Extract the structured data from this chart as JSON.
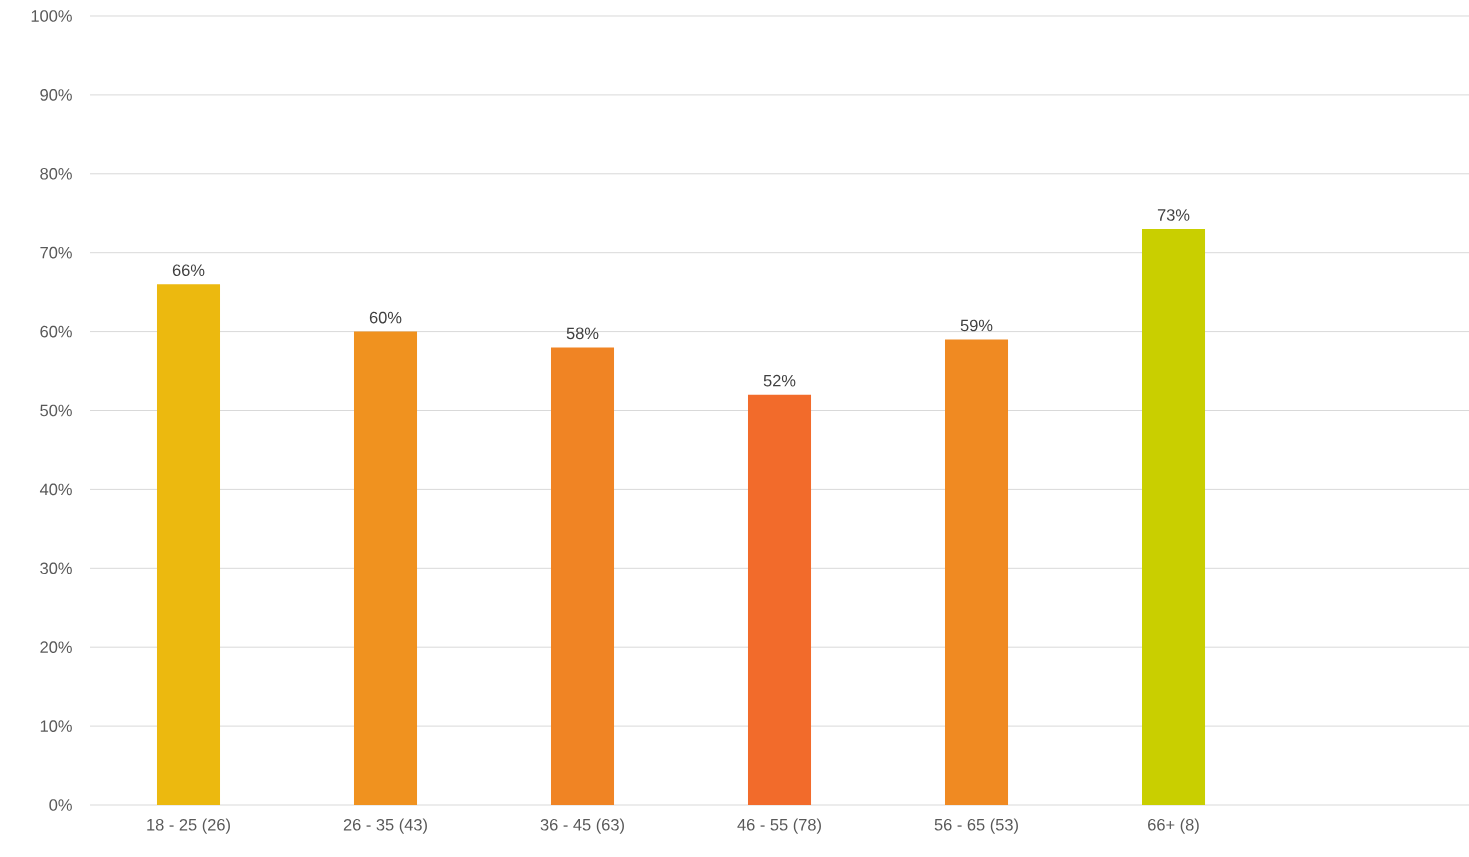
{
  "chart_data": {
    "type": "bar",
    "categories": [
      "18 - 25 (26)",
      "26 - 35 (43)",
      "36 - 45 (63)",
      "46 - 55 (78)",
      "56 - 65 (53)",
      "66+ (8)",
      null
    ],
    "values": [
      66,
      60,
      58,
      52,
      59,
      73,
      null
    ],
    "colors": [
      "#ecb90f",
      "#f0921f",
      "#f08424",
      "#f26b2b",
      "#f08a22",
      "#c9cf00",
      "#f08a22"
    ],
    "value_labels": [
      "66%",
      "60%",
      "58%",
      "52%",
      "59%",
      "73%",
      null
    ],
    "ylim": [
      0,
      100
    ],
    "yticks": [
      {
        "value": 0,
        "label": "0%"
      },
      {
        "value": 10,
        "label": "10%"
      },
      {
        "value": 20,
        "label": "20%"
      },
      {
        "value": 30,
        "label": "30%"
      },
      {
        "value": 40,
        "label": "40%"
      },
      {
        "value": 50,
        "label": "50%"
      },
      {
        "value": 60,
        "label": "60%"
      },
      {
        "value": 70,
        "label": "70%"
      },
      {
        "value": 80,
        "label": "80%"
      },
      {
        "value": 90,
        "label": "90%"
      },
      {
        "value": 100,
        "label": "100%"
      }
    ],
    "grid": "y"
  }
}
